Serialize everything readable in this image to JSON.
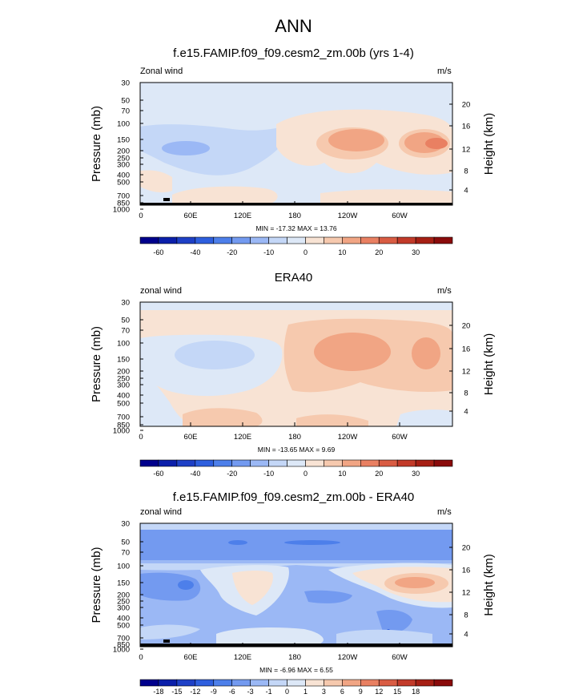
{
  "page_title": "ANN",
  "chart_data": [
    {
      "type": "heatmap",
      "title": "f.e15.FAMIP.f09_f09.cesm2_zm.00b (yrs 1-4)",
      "left_label": "Zonal wind",
      "units_label": "m/s",
      "xlabel": "",
      "ylabel": "Pressure (mb)",
      "y2label": "Height (km)",
      "x_tick_labels": [
        "0",
        "60E",
        "120E",
        "180",
        "120W",
        "60W"
      ],
      "y_tick_labels": [
        "30",
        "50",
        "70",
        "100",
        "150",
        "200",
        "250",
        "300",
        "400",
        "500",
        "700",
        "850",
        "1000"
      ],
      "y2_tick_labels": [
        "20",
        "16",
        "12",
        "8",
        "4"
      ],
      "min_max_text": "MIN = -17.32  MAX =  13.76",
      "colorbar_labels": [
        "-60",
        "-40",
        "-20",
        "-10",
        "0",
        "10",
        "20",
        "30"
      ],
      "colors": [
        "#00008c",
        "#0b1faa",
        "#1e40c6",
        "#2e5fde",
        "#4d7fea",
        "#739af0",
        "#9bb8f5",
        "#c4d7f7",
        "#dde8f7",
        "#f8e3d4",
        "#f6c9ae",
        "#f1a584",
        "#e98062",
        "#d95c43",
        "#c23a29",
        "#a61f14",
        "#8a0b0b"
      ],
      "min_value": -17.32,
      "max_value": 13.76
    },
    {
      "type": "heatmap",
      "title": "ERA40",
      "left_label": "zonal wind",
      "units_label": "m/s",
      "xlabel": "",
      "ylabel": "Pressure (mb)",
      "y2label": "Height (km)",
      "x_tick_labels": [
        "0",
        "60E",
        "120E",
        "180",
        "120W",
        "60W"
      ],
      "y_tick_labels": [
        "30",
        "50",
        "70",
        "100",
        "150",
        "200",
        "250",
        "300",
        "400",
        "500",
        "700",
        "850",
        "1000"
      ],
      "y2_tick_labels": [
        "20",
        "16",
        "12",
        "8",
        "4"
      ],
      "min_max_text": "MIN = -13.65  MAX =  9.69",
      "colorbar_labels": [
        "-60",
        "-40",
        "-20",
        "-10",
        "0",
        "10",
        "20",
        "30"
      ],
      "colors": [
        "#00008c",
        "#0b1faa",
        "#1e40c6",
        "#2e5fde",
        "#4d7fea",
        "#739af0",
        "#9bb8f5",
        "#c4d7f7",
        "#dde8f7",
        "#f8e3d4",
        "#f6c9ae",
        "#f1a584",
        "#e98062",
        "#d95c43",
        "#c23a29",
        "#a61f14",
        "#8a0b0b"
      ],
      "min_value": -13.65,
      "max_value": 9.69
    },
    {
      "type": "heatmap",
      "title": "f.e15.FAMIP.f09_f09.cesm2_zm.00b - ERA40",
      "left_label": "zonal wind",
      "units_label": "m/s",
      "xlabel": "",
      "ylabel": "Pressure (mb)",
      "y2label": "Height (km)",
      "x_tick_labels": [
        "0",
        "60E",
        "120E",
        "180",
        "120W",
        "60W"
      ],
      "y_tick_labels": [
        "30",
        "50",
        "70",
        "100",
        "150",
        "200",
        "250",
        "300",
        "400",
        "500",
        "700",
        "850",
        "1000"
      ],
      "y2_tick_labels": [
        "20",
        "16",
        "12",
        "8",
        "4"
      ],
      "min_max_text": "MIN = -6.96  MAX =  6.55",
      "colorbar_labels": [
        "-18",
        "-15",
        "-12",
        "-9",
        "-6",
        "-3",
        "-1",
        "0",
        "1",
        "3",
        "6",
        "9",
        "12",
        "15",
        "18"
      ],
      "colors": [
        "#00008c",
        "#0b1faa",
        "#1e40c6",
        "#2e5fde",
        "#4d7fea",
        "#739af0",
        "#9bb8f5",
        "#c4d7f7",
        "#dde8f7",
        "#f8e3d4",
        "#f6c9ae",
        "#f1a584",
        "#e98062",
        "#d95c43",
        "#c23a29",
        "#a61f14",
        "#8a0b0b"
      ],
      "min_value": -6.96,
      "max_value": 6.55
    }
  ]
}
